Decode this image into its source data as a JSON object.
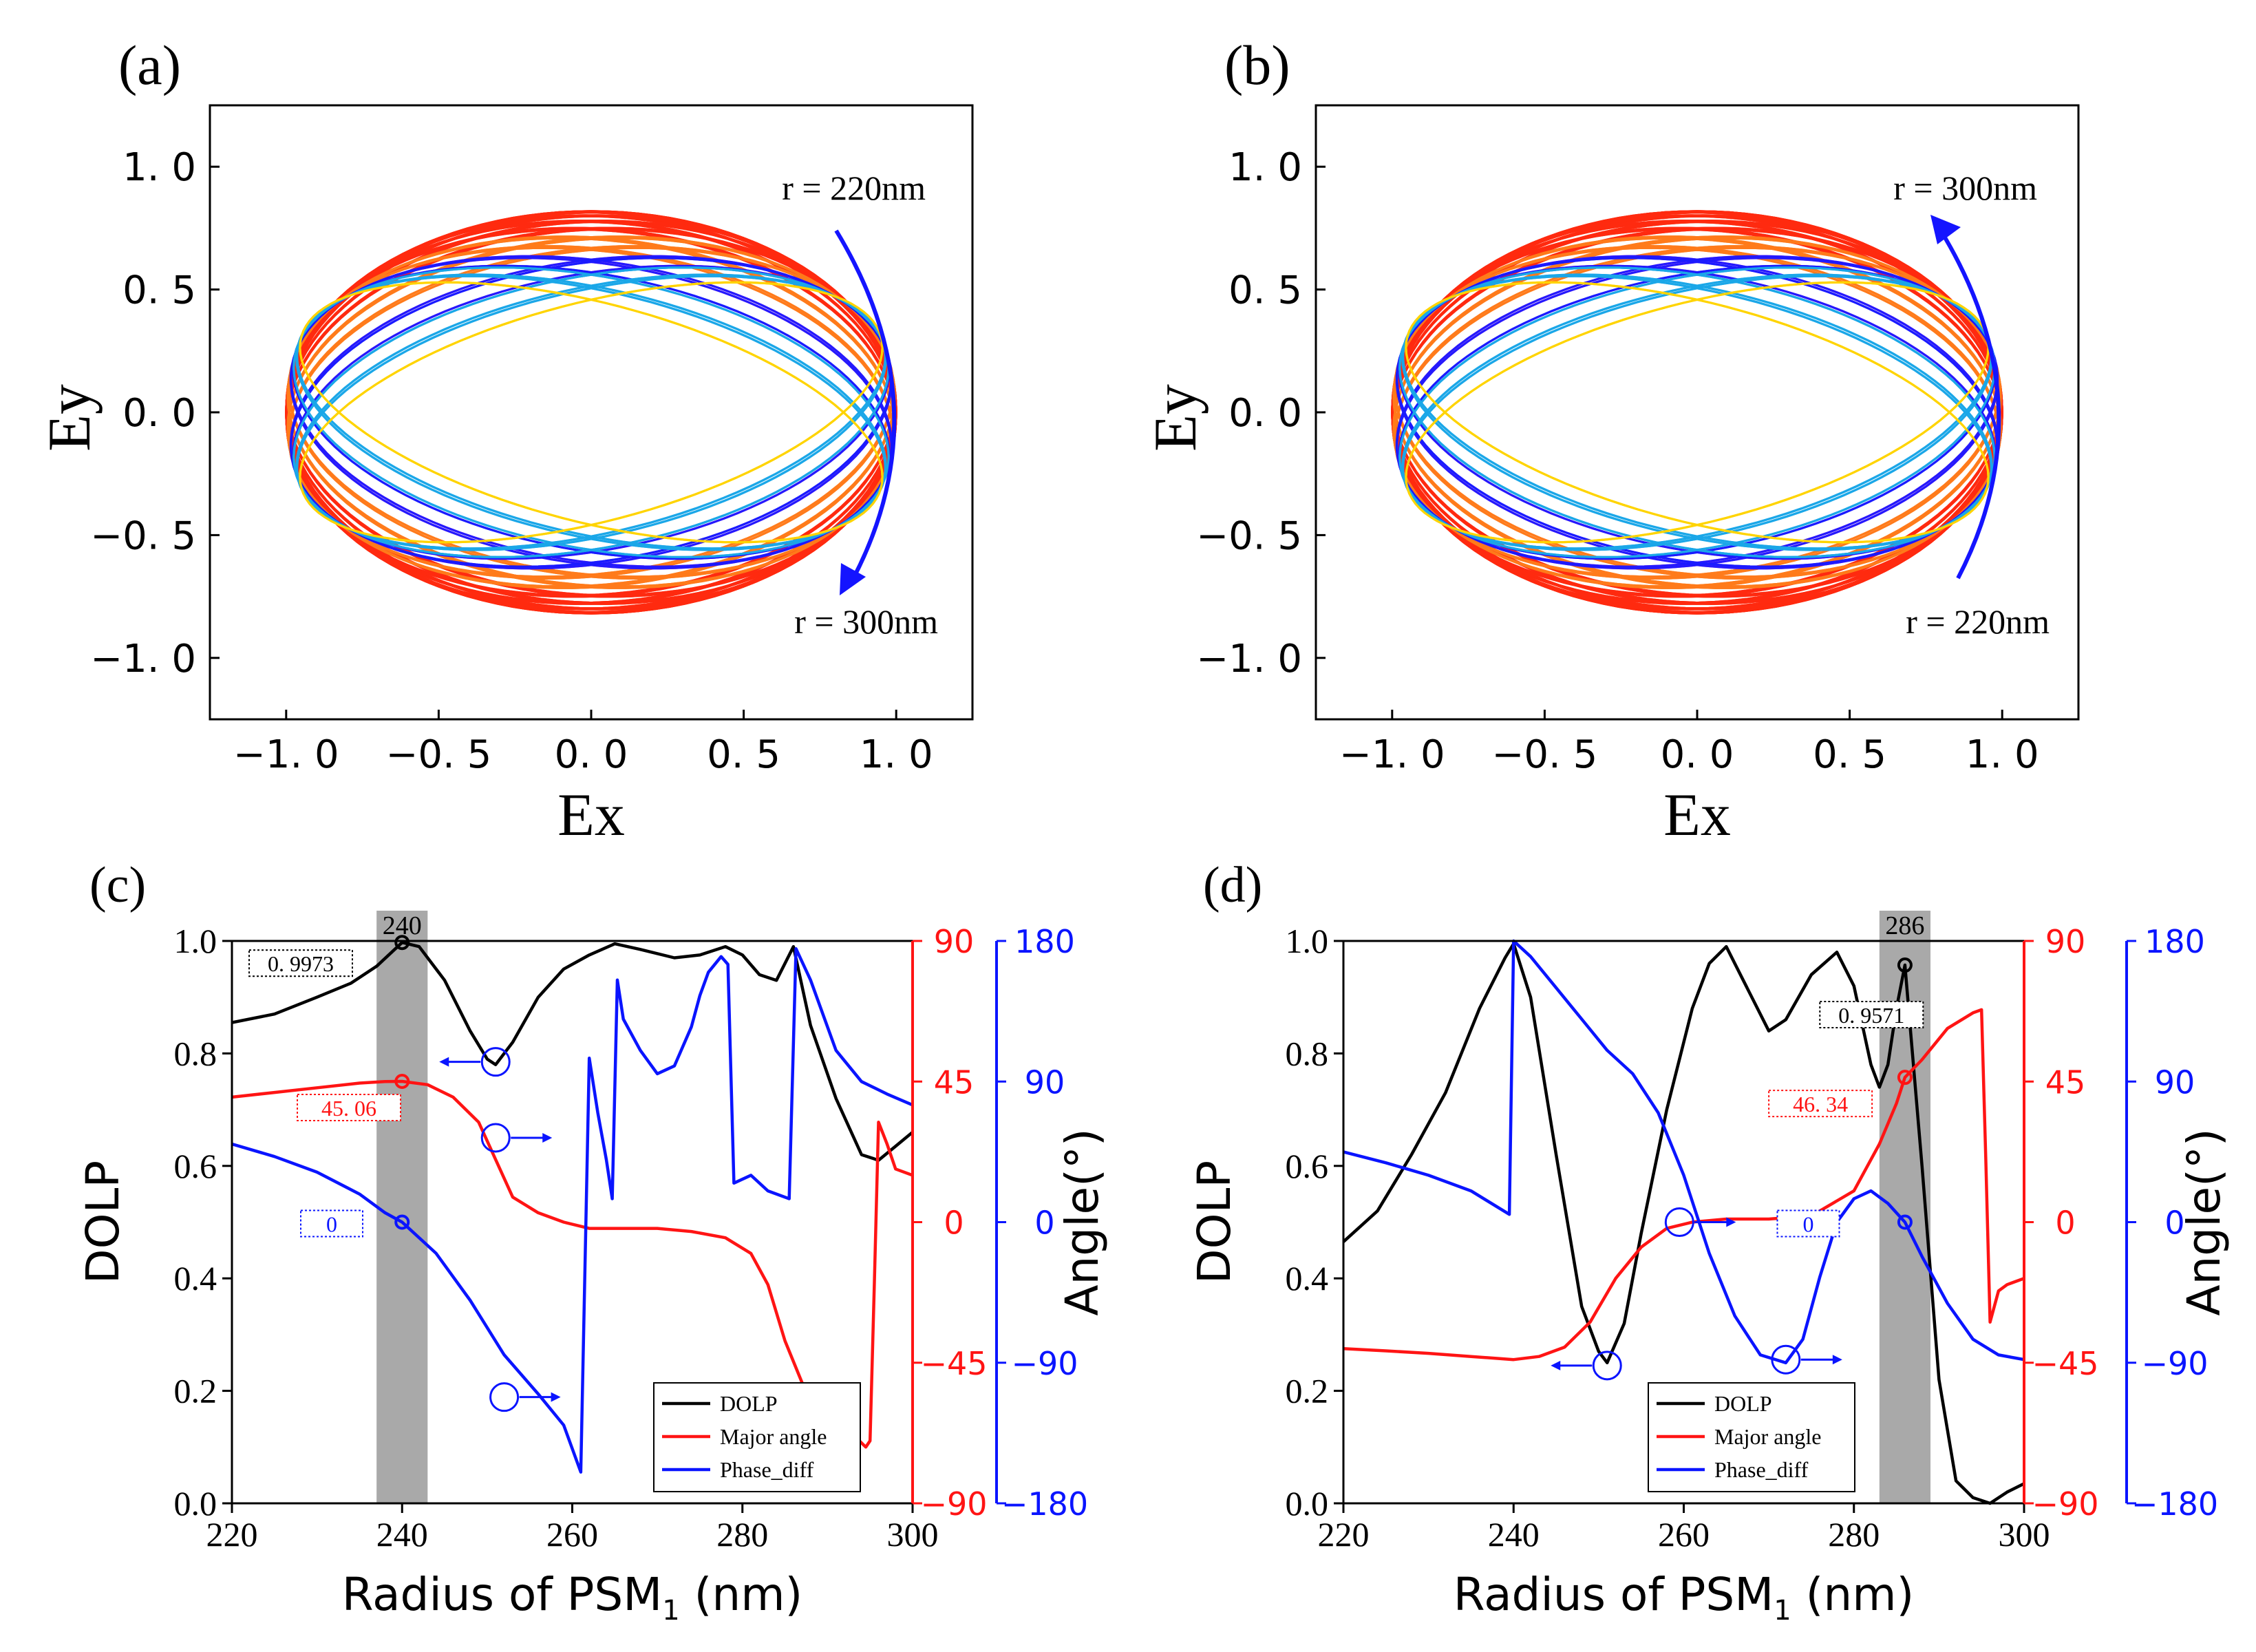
{
  "chart_data": [
    {
      "id": "a",
      "type": "line",
      "panel_label": "(a)",
      "title": "",
      "xlabel": "Ex",
      "ylabel": "Ey",
      "xlim": [
        -1.25,
        1.25
      ],
      "ylim": [
        -1.25,
        1.25
      ],
      "xticks": [
        "−1. 0",
        "−0. 5",
        "0. 0",
        "0. 5",
        "1. 0"
      ],
      "xtick_values": [
        -1.0,
        -0.5,
        0.0,
        0.5,
        1.0
      ],
      "yticks": [
        "1. 0",
        "0. 5",
        "0. 0",
        "−0. 5",
        "−1. 0"
      ],
      "ytick_values": [
        1.0,
        0.5,
        0.0,
        -0.5,
        -1.0
      ],
      "annotations": [
        "r = 220nm",
        "r = 300nm"
      ],
      "arrow_direction": "clockwise",
      "series": [
        {
          "name": "polarization ellipses, r = 220–300 nm",
          "ellipse_count": 81,
          "colors": [
            "#ff2a10",
            "#ff7a1a",
            "#ffd400",
            "#1aa7e8",
            "#1a1aff",
            "#d010d8"
          ]
        }
      ]
    },
    {
      "id": "b",
      "type": "line",
      "panel_label": "(b)",
      "title": "",
      "xlabel": "Ex",
      "ylabel": "Ey",
      "xlim": [
        -1.25,
        1.25
      ],
      "ylim": [
        -1.25,
        1.25
      ],
      "xticks": [
        "−1. 0",
        "−0. 5",
        "0. 0",
        "0. 5",
        "1. 0"
      ],
      "xtick_values": [
        -1.0,
        -0.5,
        0.0,
        0.5,
        1.0
      ],
      "yticks": [
        "1. 0",
        "0. 5",
        "0. 0",
        "−0. 5",
        "−1. 0"
      ],
      "ytick_values": [
        1.0,
        0.5,
        0.0,
        -0.5,
        -1.0
      ],
      "annotations": [
        "r = 300nm",
        "r = 220nm"
      ],
      "arrow_direction": "counterclockwise",
      "series": [
        {
          "name": "polarization ellipses, r = 220–300 nm",
          "ellipse_count": 81,
          "colors": [
            "#ff2a10",
            "#ff7a1a",
            "#ffd400",
            "#1aa7e8",
            "#1a1aff",
            "#d010d8"
          ]
        }
      ]
    },
    {
      "id": "c",
      "type": "line",
      "panel_label": "(c)",
      "xlabel_main": "Radius of PSM",
      "xlabel_sub": "1",
      "xlabel_unit": " (nm)",
      "ylabel_left": "DOLP",
      "ylabel_right": "Angle(°)",
      "xlim": [
        220,
        300
      ],
      "xticks": [
        "220",
        "240",
        "260",
        "280",
        "300"
      ],
      "xtick_values": [
        220,
        240,
        260,
        280,
        300
      ],
      "ylim_left": [
        0,
        1
      ],
      "yticks_left": [
        "0.0",
        "0.2",
        "0.4",
        "0.6",
        "0.8",
        "1.0"
      ],
      "ylim_red": [
        -90,
        90
      ],
      "yticks_red": [
        "−90",
        "−45",
        "0",
        "45",
        "90"
      ],
      "ylim_blue": [
        -180,
        180
      ],
      "yticks_blue": [
        "−180",
        "−90",
        "0",
        "90",
        "180"
      ],
      "highlight": {
        "center": 240,
        "span": [
          237,
          243
        ],
        "label": "240"
      },
      "callouts": {
        "dolp": "0. 9973",
        "major": "45. 06",
        "phase": "0"
      },
      "marker_values": {
        "dolp": 0.9973,
        "major": 45.06,
        "phase": 0
      },
      "legend": [
        "DOLP",
        "Major angle",
        "Phase_diff"
      ],
      "series": [
        {
          "name": "DOLP",
          "axis": "left",
          "color": "#000000",
          "x": [
            220,
            225,
            230,
            234,
            237,
            240,
            242,
            245,
            248,
            250,
            251,
            253,
            256,
            259,
            262,
            265,
            268,
            272,
            275,
            278,
            280,
            282,
            284,
            286,
            288,
            291,
            294,
            296,
            298,
            300
          ],
          "values": [
            0.855,
            0.87,
            0.9,
            0.925,
            0.955,
            0.9973,
            0.99,
            0.93,
            0.84,
            0.79,
            0.78,
            0.82,
            0.9,
            0.95,
            0.975,
            0.995,
            0.985,
            0.97,
            0.975,
            0.99,
            0.975,
            0.94,
            0.93,
            0.99,
            0.85,
            0.72,
            0.62,
            0.61,
            0.635,
            0.66
          ]
        },
        {
          "name": "Major angle",
          "axis": "red",
          "color": "#ff1414",
          "x": [
            220,
            225,
            230,
            235,
            238,
            240,
            243,
            246,
            249,
            251,
            253,
            256,
            259,
            262,
            266,
            270,
            274,
            278,
            281,
            283,
            285,
            288,
            291,
            293,
            294.5,
            295,
            295.5,
            296,
            297,
            298,
            300
          ],
          "values": [
            40,
            41.5,
            43,
            44.5,
            45,
            45.06,
            44,
            40,
            32,
            20,
            8,
            3,
            0,
            -2,
            -2,
            -2,
            -3,
            -5,
            -10,
            -20,
            -38,
            -58,
            -64,
            -68,
            -72,
            -70,
            -20,
            32,
            25,
            17,
            15
          ]
        },
        {
          "name": "Phase_diff",
          "axis": "blue",
          "color": "#0a14ff",
          "x": [
            220,
            225,
            230,
            235,
            238,
            240,
            244,
            248,
            252,
            256,
            259,
            261,
            262,
            263,
            264,
            264.7,
            265.3,
            266,
            268,
            270,
            272,
            274,
            275,
            276,
            277.5,
            278.3,
            279,
            281,
            283,
            285.5,
            286.3,
            288,
            291,
            294,
            297,
            300
          ],
          "values": [
            50,
            42,
            32,
            18,
            6,
            0,
            -20,
            -50,
            -85,
            -110,
            -130,
            -160,
            105,
            70,
            40,
            15,
            155,
            130,
            110,
            95,
            100,
            125,
            145,
            160,
            170,
            165,
            25,
            30,
            20,
            15,
            175,
            155,
            110,
            90,
            82,
            75
          ]
        }
      ]
    },
    {
      "id": "d",
      "type": "line",
      "panel_label": "(d)",
      "xlabel_main": "Radius of PSM",
      "xlabel_sub": "1",
      "xlabel_unit": " (nm)",
      "ylabel_left": "DOLP",
      "ylabel_right": "Angle(°)",
      "xlim": [
        220,
        300
      ],
      "xticks": [
        "220",
        "240",
        "260",
        "280",
        "300"
      ],
      "xtick_values": [
        220,
        240,
        260,
        280,
        300
      ],
      "ylim_left": [
        0,
        1
      ],
      "yticks_left": [
        "0.0",
        "0.2",
        "0.4",
        "0.6",
        "0.8",
        "1.0"
      ],
      "ylim_red": [
        -90,
        90
      ],
      "yticks_red": [
        "−90",
        "−45",
        "0",
        "45",
        "90"
      ],
      "ylim_blue": [
        -180,
        180
      ],
      "yticks_blue": [
        "−180",
        "−90",
        "0",
        "90",
        "180"
      ],
      "highlight": {
        "center": 286,
        "span": [
          283,
          289
        ],
        "label": "286"
      },
      "callouts": {
        "dolp": "0. 9571",
        "major": "46. 34",
        "phase": "0"
      },
      "marker_values": {
        "dolp": 0.9571,
        "major": 46.34,
        "phase": 0
      },
      "legend": [
        "DOLP",
        "Major angle",
        "Phase_diff"
      ],
      "series": [
        {
          "name": "DOLP",
          "axis": "left",
          "color": "#000000",
          "x": [
            220,
            224,
            228,
            232,
            236,
            239,
            240,
            242,
            245,
            248,
            250,
            251,
            253,
            255,
            258,
            261,
            263,
            265,
            267,
            270,
            272,
            275,
            278,
            280,
            282,
            283,
            284,
            285,
            286,
            288,
            290,
            292,
            294,
            296,
            298,
            300
          ],
          "values": [
            0.465,
            0.52,
            0.62,
            0.73,
            0.88,
            0.97,
            0.995,
            0.9,
            0.62,
            0.35,
            0.27,
            0.25,
            0.32,
            0.48,
            0.7,
            0.88,
            0.96,
            0.99,
            0.93,
            0.84,
            0.86,
            0.94,
            0.98,
            0.92,
            0.78,
            0.74,
            0.78,
            0.88,
            0.9571,
            0.6,
            0.22,
            0.04,
            0.01,
            0.0,
            0.02,
            0.035
          ]
        },
        {
          "name": "Major angle",
          "axis": "red",
          "color": "#ff1414",
          "x": [
            220,
            225,
            230,
            235,
            240,
            243,
            246,
            249,
            252,
            255,
            258,
            261,
            265,
            270,
            275,
            280,
            283,
            285,
            286,
            288,
            291,
            294,
            295,
            295.5,
            296,
            297,
            298,
            300
          ],
          "values": [
            -40.5,
            -41.2,
            -42,
            -43,
            -44,
            -43,
            -40,
            -32,
            -18,
            -8,
            -2,
            0,
            1,
            1,
            2,
            10,
            25,
            38,
            46.34,
            52,
            62,
            67,
            68,
            20,
            -32,
            -22,
            -20,
            -18
          ]
        },
        {
          "name": "Phase_diff",
          "axis": "blue",
          "color": "#0a14ff",
          "x": [
            220,
            225,
            230,
            235,
            239.5,
            240,
            242,
            245,
            248,
            251,
            254,
            257,
            260,
            263,
            266,
            269,
            272,
            274,
            276,
            278,
            280,
            282,
            284,
            286,
            288,
            291,
            294,
            297,
            300
          ],
          "values": [
            45,
            38,
            30,
            20,
            5,
            180,
            170,
            150,
            130,
            110,
            95,
            70,
            30,
            -20,
            -60,
            -85,
            -90,
            -75,
            -35,
            0,
            15,
            20,
            12,
            0,
            -22,
            -52,
            -75,
            -85,
            -88
          ]
        }
      ]
    }
  ]
}
